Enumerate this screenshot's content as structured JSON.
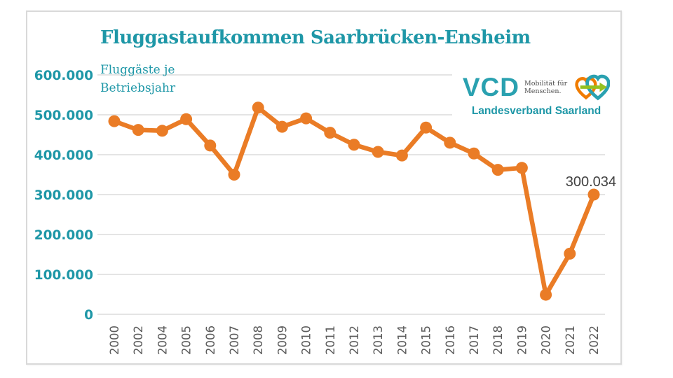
{
  "header": {
    "title": "Fluggastaufkommen Saarbrücken-Ensheim",
    "subtitle_line1": "Fluggäste je",
    "subtitle_line2": "Betriebsjahr"
  },
  "logo": {
    "wordmark": "VCD",
    "tagline_line1": "Mobilität für",
    "tagline_line2": "Menschen.",
    "org": "Landesverband Saarland"
  },
  "colors": {
    "teal": "#1E97A7",
    "logo_teal": "#2AA1B0",
    "logo_orange": "#F07C00",
    "logo_green": "#95C11F",
    "orange": "#EA7C26",
    "grid": "#DBDBDB",
    "axis_text": "#5A5A5A",
    "annotation_text": "#404040"
  },
  "chart_data": {
    "type": "line",
    "title": "Fluggastaufkommen Saarbrücken-Ensheim",
    "subtitle": "Fluggäste je Betriebsjahr",
    "categories": [
      "2000",
      "2002",
      "2004",
      "2005",
      "2006",
      "2007",
      "2008",
      "2009",
      "2010",
      "2011",
      "2012",
      "2013",
      "2014",
      "2015",
      "2016",
      "2017",
      "2018",
      "2019",
      "2020",
      "2021",
      "2022"
    ],
    "values": [
      484000,
      462000,
      460000,
      489000,
      423000,
      350000,
      518000,
      470000,
      491000,
      455000,
      425000,
      407000,
      398000,
      468000,
      430000,
      403000,
      362000,
      367000,
      49000,
      152000,
      300034
    ],
    "series_color": "#EA7C26",
    "ylim": [
      0,
      600000
    ],
    "ytick_values": [
      600000,
      500000,
      400000,
      300000,
      200000,
      100000,
      0
    ],
    "ytick_labels": [
      "600.000",
      "500.000",
      "400.000",
      "300.000",
      "200.000",
      "100.000",
      "0"
    ],
    "grid": true,
    "legend": "none",
    "annotations": [
      {
        "category": "2022",
        "text": "300.034"
      }
    ]
  }
}
